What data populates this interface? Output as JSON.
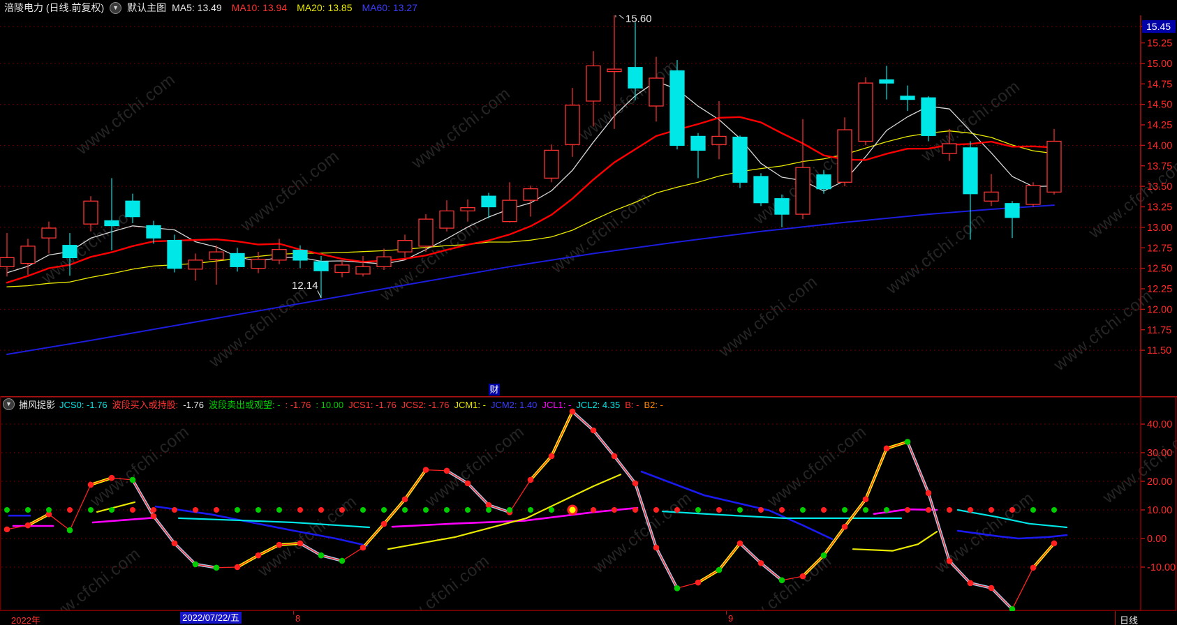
{
  "header": {
    "title": "涪陵电力 (日线.前复权)",
    "layout_button": "默认主图",
    "ma_labels": [
      {
        "text": "MA5: 13.49",
        "color": "#e8e8e8"
      },
      {
        "text": "MA10: 13.94",
        "color": "#ff3232"
      },
      {
        "text": "MA20: 13.85",
        "color": "#e8e800"
      },
      {
        "text": "MA60: 13.27",
        "color": "#3c3cff"
      }
    ]
  },
  "watermark": "www.cfchi.com",
  "badge": "财",
  "sub_header": {
    "name": "捕风捉影",
    "fields": [
      {
        "text": "JCS0: -1.76",
        "color": "#00e5e5"
      },
      {
        "text": "波段买入或持股:",
        "color": "#ff3232"
      },
      {
        "text": "-1.76",
        "color": "#e8e8e8"
      },
      {
        "text": "波段卖出或观望: -",
        "color": "#00cc00"
      },
      {
        "text": ": -1.76",
        "color": "#ff3232"
      },
      {
        "text": ": 10.00",
        "color": "#00cc00"
      },
      {
        "text": "JCS1: -1.76",
        "color": "#ff3232"
      },
      {
        "text": "JCS2: -1.76",
        "color": "#ff3232"
      },
      {
        "text": "JCM1: -",
        "color": "#e5e500"
      },
      {
        "text": "JCM2: 1.40",
        "color": "#3c3cff"
      },
      {
        "text": "JCL1: -",
        "color": "#ff00ff"
      },
      {
        "text": "JCL2: 4.35",
        "color": "#00e5e5"
      },
      {
        "text": "B: -",
        "color": "#ff3232"
      },
      {
        "text": "B2: -",
        "color": "#ff8800"
      }
    ]
  },
  "bottom_bar": {
    "year": "2022年",
    "selected_date": "2022/07/22/五",
    "month_marks": [
      {
        "label": "8",
        "x": 420
      },
      {
        "label": "9",
        "x": 1040
      }
    ],
    "period": "日线"
  },
  "colors": {
    "up_candle": "#ff3232",
    "down_candle": "#00e7e7",
    "ma5": "#d8d8d8",
    "ma10": "#ff0000",
    "ma20": "#e8e800",
    "ma60": "#1c1cdc",
    "grid": "#8b0000",
    "axis_line": "#c01414",
    "axis_text": "#ff2a2a",
    "price_marker_bg": "#0000a8",
    "signal_red": "#ff2222",
    "signal_yellow": "#ffff00",
    "signal_lightblue": "#a6c8e8",
    "jcl_magenta": "#ff00ff",
    "jcm_blue": "#1a1af0",
    "jcl_cyan": "#00e5e5",
    "dot_green": "#00cc00",
    "dot_red": "#ff2020"
  },
  "chart_data": [
    {
      "type": "candlestick",
      "title": "涪陵电力 daily price with MA5/MA10/MA20/MA60 overlays",
      "ylim": [
        11.35,
        15.7
      ],
      "price_axis": {
        "ticks": [
          {
            "label": "15.45",
            "value": 15.45,
            "grid": true,
            "highlight": true
          },
          {
            "label": "15.25",
            "value": 15.25,
            "grid": false
          },
          {
            "label": "15.00",
            "value": 15.0,
            "grid": true
          },
          {
            "label": "14.75",
            "value": 14.75,
            "grid": false
          },
          {
            "label": "14.50",
            "value": 14.5,
            "grid": true
          },
          {
            "label": "14.25",
            "value": 14.25,
            "grid": false
          },
          {
            "label": "14.00",
            "value": 14.0,
            "grid": true
          },
          {
            "label": "13.75",
            "value": 13.75,
            "grid": false
          },
          {
            "label": "13.50",
            "value": 13.5,
            "grid": true
          },
          {
            "label": "13.25",
            "value": 13.25,
            "grid": false
          },
          {
            "label": "13.00",
            "value": 13.0,
            "grid": true
          },
          {
            "label": "12.75",
            "value": 12.75,
            "grid": false
          },
          {
            "label": "12.50",
            "value": 12.5,
            "grid": true
          },
          {
            "label": "12.25",
            "value": 12.25,
            "grid": false
          },
          {
            "label": "12.00",
            "value": 12.0,
            "grid": true
          },
          {
            "label": "11.75",
            "value": 11.75,
            "grid": false
          },
          {
            "label": "11.50",
            "value": 11.5,
            "grid": true
          }
        ]
      },
      "candles_ochl": [
        [
          12.52,
          12.63,
          12.93,
          12.4
        ],
        [
          12.56,
          12.77,
          12.86,
          12.42
        ],
        [
          12.87,
          12.99,
          13.07,
          12.68
        ],
        [
          12.78,
          12.63,
          12.93,
          12.41
        ],
        [
          13.04,
          13.32,
          13.38,
          12.95
        ],
        [
          13.08,
          13.02,
          13.6,
          12.72
        ],
        [
          13.32,
          13.13,
          13.41,
          13.05
        ],
        [
          13.02,
          12.87,
          13.08,
          12.8
        ],
        [
          12.84,
          12.5,
          12.91,
          12.45
        ],
        [
          12.49,
          12.6,
          12.68,
          12.35
        ],
        [
          12.61,
          12.7,
          12.78,
          12.3
        ],
        [
          12.68,
          12.52,
          12.75,
          12.46
        ],
        [
          12.5,
          12.61,
          12.7,
          12.44
        ],
        [
          12.6,
          12.73,
          12.86,
          12.55
        ],
        [
          12.72,
          12.6,
          12.78,
          12.5
        ],
        [
          12.58,
          12.47,
          12.65,
          12.14
        ],
        [
          12.45,
          12.54,
          12.6,
          12.39
        ],
        [
          12.43,
          12.52,
          12.65,
          12.4
        ],
        [
          12.52,
          12.64,
          12.74,
          12.48
        ],
        [
          12.7,
          12.84,
          12.91,
          12.63
        ],
        [
          12.77,
          13.1,
          13.16,
          12.7
        ],
        [
          12.99,
          13.2,
          13.33,
          12.95
        ],
        [
          13.2,
          13.24,
          13.34,
          13.07
        ],
        [
          13.38,
          13.25,
          13.42,
          13.11
        ],
        [
          13.07,
          13.33,
          13.55,
          13.06
        ],
        [
          13.33,
          13.47,
          13.51,
          13.13
        ],
        [
          13.6,
          13.94,
          14.01,
          13.55
        ],
        [
          14.01,
          14.49,
          14.7,
          13.86
        ],
        [
          14.54,
          14.97,
          15.15,
          14.23
        ],
        [
          14.9,
          14.93,
          15.6,
          14.2
        ],
        [
          14.95,
          14.7,
          15.5,
          14.55
        ],
        [
          14.48,
          14.82,
          15.08,
          14.29
        ],
        [
          14.91,
          14.0,
          15.04,
          13.95
        ],
        [
          14.11,
          13.94,
          14.15,
          13.6
        ],
        [
          14.01,
          14.11,
          14.54,
          13.83
        ],
        [
          14.1,
          13.55,
          14.12,
          13.48
        ],
        [
          13.62,
          13.3,
          13.66,
          13.26
        ],
        [
          13.35,
          13.16,
          13.4,
          13.0
        ],
        [
          13.16,
          13.73,
          14.32,
          13.1
        ],
        [
          13.64,
          13.47,
          13.7,
          13.41
        ],
        [
          13.55,
          14.19,
          14.34,
          13.5
        ],
        [
          14.05,
          14.76,
          14.83,
          14.0
        ],
        [
          14.8,
          14.76,
          14.97,
          14.56
        ],
        [
          14.6,
          14.56,
          14.73,
          14.42
        ],
        [
          14.58,
          14.12,
          14.6,
          14.05
        ],
        [
          13.9,
          14.02,
          14.2,
          13.81
        ],
        [
          13.97,
          13.41,
          14.05,
          12.85
        ],
        [
          13.32,
          13.43,
          13.65,
          13.26
        ],
        [
          13.29,
          13.12,
          13.32,
          12.87
        ],
        [
          13.28,
          13.51,
          13.55,
          13.25
        ],
        [
          13.43,
          14.05,
          14.2,
          13.4
        ]
      ],
      "pre_window_closes_for_ma": [
        12.55,
        12.5,
        12.42,
        12.3,
        12.18,
        12.1,
        12.05,
        12.1,
        12.2,
        12.28,
        12.1,
        11.95,
        12.05,
        12.22,
        12.35,
        12.45,
        12.38,
        12.3,
        12.42,
        12.5
      ],
      "ma_periods": {
        "ma5": 5,
        "ma10": 10,
        "ma20": 20
      },
      "ma60_points": [
        [
          0,
          11.45
        ],
        [
          4,
          11.62
        ],
        [
          8,
          11.8
        ],
        [
          12,
          11.98
        ],
        [
          16,
          12.16
        ],
        [
          20,
          12.34
        ],
        [
          24,
          12.52
        ],
        [
          28,
          12.68
        ],
        [
          32,
          12.82
        ],
        [
          36,
          12.95
        ],
        [
          40,
          13.06
        ],
        [
          44,
          13.16
        ],
        [
          47,
          13.22
        ],
        [
          50,
          13.27
        ]
      ],
      "annotations": {
        "high_label": "15.60",
        "low_label": "12.14"
      }
    },
    {
      "type": "line",
      "title": "捕风捉影 indicator panel",
      "ylim": [
        -25.4,
        49.3
      ],
      "y_axis": [
        {
          "label": "40.00",
          "value": 40
        },
        {
          "label": "30.00",
          "value": 30
        },
        {
          "label": "20.00",
          "value": 20
        },
        {
          "label": "10.00",
          "value": 10
        },
        {
          "label": "0.00",
          "value": 0
        },
        {
          "label": "-10.00",
          "value": -10
        }
      ],
      "zigzag_values": [
        3.2,
        4.6,
        8.5,
        2.9,
        18.8,
        21.2,
        20.5,
        7.8,
        -1.7,
        -9.0,
        -10.2,
        -10.0,
        -5.9,
        -2.2,
        -1.7,
        -5.9,
        -7.8,
        -3.2,
        5.1,
        13.7,
        24.0,
        23.7,
        19.3,
        11.7,
        9.2,
        20.5,
        28.8,
        44.4,
        37.8,
        28.8,
        19.3,
        -3.2,
        -17.4,
        -15.4,
        -11.0,
        -1.7,
        -8.6,
        -14.6,
        -13.2,
        -5.9,
        4.1,
        13.7,
        31.5,
        33.8,
        15.9,
        -7.9,
        -15.6,
        -17.3,
        -24.7,
        -10.2,
        -1.7
      ],
      "zigzag_dot_colors": "RRRGRRGRRGGRRRRGGRRRRRRRRRRRRRRRGRGRRGRGRRRGRRRRGRR",
      "yellow_overlay_ranges": [
        [
          1,
          2
        ],
        [
          4,
          5
        ],
        [
          11,
          14
        ],
        [
          17,
          20
        ],
        [
          25,
          27
        ],
        [
          33,
          35
        ],
        [
          38,
          43
        ],
        [
          49,
          50
        ]
      ],
      "lightblue_overlay_ranges": [
        [
          6,
          10
        ],
        [
          14,
          16
        ],
        [
          21,
          24
        ],
        [
          27,
          32
        ],
        [
          35,
          37
        ],
        [
          43,
          48
        ]
      ],
      "dot_row": {
        "value": 10,
        "colors": "GGGRGGRRRRRGGGRRRGGGGGGGGGGSRRRRRGRGRRGRGGGRRRRRRGG"
      },
      "magenta_segments": [
        [
          [
            0.3,
            4.4
          ],
          [
            2.2,
            4.4
          ]
        ],
        [
          [
            4.1,
            5.6
          ],
          [
            5.7,
            6.5
          ],
          [
            7.1,
            7.3
          ]
        ],
        [
          [
            18.4,
            4.1
          ],
          [
            21.3,
            5.2
          ],
          [
            24.7,
            6.2
          ],
          [
            28.0,
            9.2
          ],
          [
            30.1,
            10.7
          ]
        ],
        [
          [
            41.4,
            8.6
          ],
          [
            43.0,
            10.2
          ],
          [
            44.4,
            10.0
          ]
        ]
      ],
      "cyan_segments": [
        [
          [
            8.2,
            7.1
          ],
          [
            11.3,
            6.3
          ],
          [
            13.7,
            5.6
          ],
          [
            17.3,
            3.9
          ]
        ],
        [
          [
            31.3,
            9.5
          ],
          [
            34.3,
            8.2
          ],
          [
            37.1,
            7.1
          ],
          [
            42.7,
            7.1
          ]
        ],
        [
          [
            45.4,
            10.0
          ],
          [
            47.3,
            7.5
          ],
          [
            48.8,
            5.2
          ],
          [
            50.6,
            3.9
          ]
        ]
      ],
      "blue_segments": [
        [
          [
            0.1,
            8.0
          ],
          [
            1.1,
            8.0
          ]
        ],
        [
          [
            7.1,
            11.2
          ],
          [
            9.7,
            8.5
          ],
          [
            13.7,
            2.7
          ],
          [
            15.7,
            0.0
          ],
          [
            17.2,
            -2.5
          ]
        ],
        [
          [
            30.3,
            23.4
          ],
          [
            33.3,
            15.1
          ],
          [
            34.7,
            12.7
          ],
          [
            36.4,
            9.8
          ],
          [
            38.0,
            4.6
          ],
          [
            39.4,
            -0.2
          ]
        ],
        [
          [
            45.4,
            2.7
          ],
          [
            47.3,
            0.8
          ],
          [
            48.3,
            0.0
          ],
          [
            49.7,
            0.5
          ],
          [
            50.6,
            1.2
          ]
        ]
      ],
      "yellow_segments": [
        [
          [
            4.3,
            9.3
          ],
          [
            5.2,
            11.0
          ],
          [
            6.1,
            12.7
          ]
        ],
        [
          [
            18.2,
            -3.7
          ],
          [
            21.4,
            0.5
          ],
          [
            24.8,
            7.1
          ],
          [
            28.0,
            18.3
          ],
          [
            29.3,
            22.4
          ]
        ],
        [
          [
            40.4,
            -3.7
          ],
          [
            42.3,
            -4.3
          ],
          [
            43.5,
            -2.0
          ],
          [
            44.4,
            2.4
          ]
        ]
      ],
      "sell_signal_marker_index": 27
    }
  ]
}
